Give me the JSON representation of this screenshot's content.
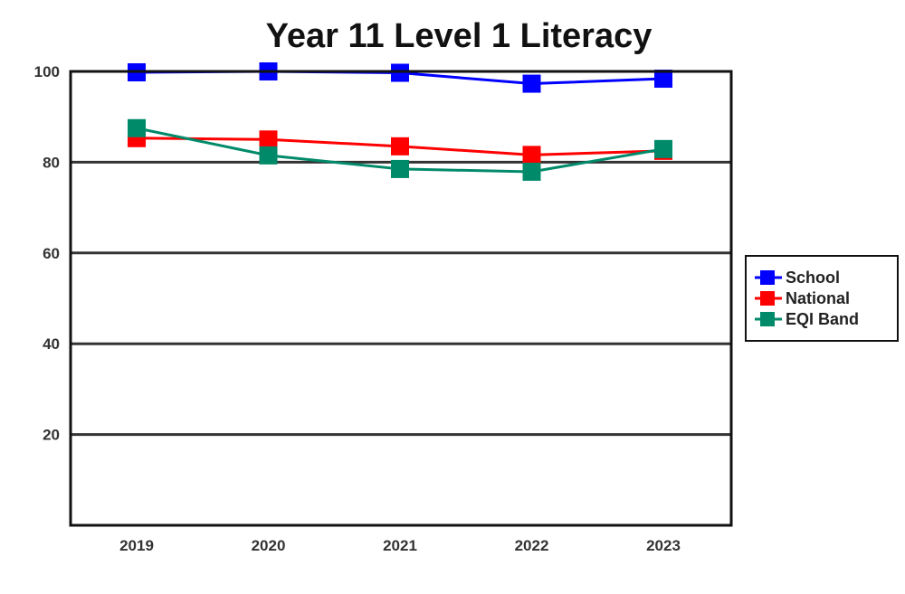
{
  "chart_data": {
    "type": "line",
    "title": "Year 11 Level 1 Literacy",
    "xlabel": "",
    "ylabel": "",
    "categories": [
      "2019",
      "2020",
      "2021",
      "2022",
      "2023"
    ],
    "ylim": [
      0,
      100
    ],
    "yticks": [
      20,
      40,
      60,
      80,
      100
    ],
    "grid": true,
    "legend_position": "right",
    "series": [
      {
        "name": "School",
        "color": "#0000ff",
        "marker": "square",
        "values": [
          99.8,
          100,
          99.7,
          97.3,
          98.4
        ]
      },
      {
        "name": "National",
        "color": "#ff0000",
        "marker": "square",
        "values": [
          85.3,
          85,
          83.5,
          81.6,
          82.5
        ]
      },
      {
        "name": "EQI Band",
        "color": "#008a6a",
        "marker": "square",
        "values": [
          87.5,
          81.5,
          78.5,
          77.9,
          82.9
        ]
      }
    ]
  }
}
